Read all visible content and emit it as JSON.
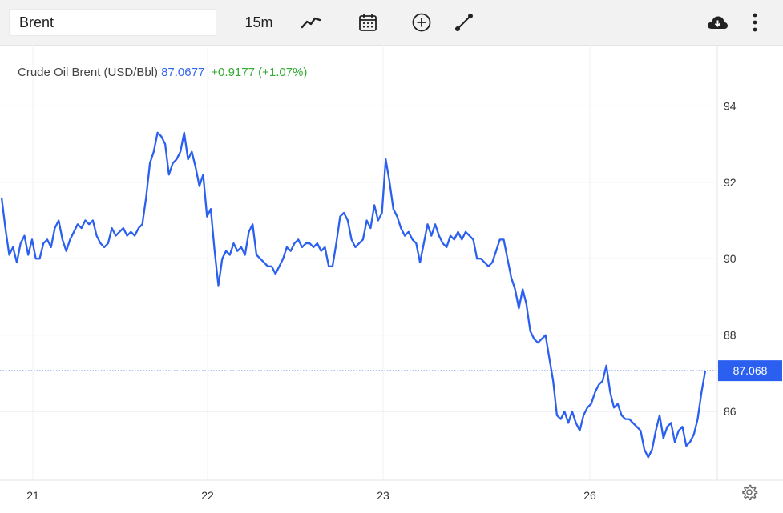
{
  "toolbar": {
    "search_value": "Brent",
    "interval": "15m",
    "icons": [
      "chart-type-icon",
      "calendar-icon",
      "add-indicator-icon",
      "draw-line-icon",
      "cloud-download-icon",
      "more-vertical-icon",
      "settings-gear-icon"
    ]
  },
  "legend": {
    "name": "Crude Oil Brent (USD/Bbl)",
    "price": "87.0677",
    "change": "+0.9177 (+1.07%)"
  },
  "colors": {
    "line": "#2a5ff0",
    "price_label_bg": "#2a5ff0",
    "change_up": "#33aa33"
  },
  "chart_data": {
    "type": "line",
    "title": "Crude Oil Brent (USD/Bbl)",
    "x_tick_labels": [
      "21",
      "22",
      "23",
      "26"
    ],
    "y_tick_labels": [
      "94",
      "92",
      "90",
      "88",
      "86"
    ],
    "y_ticks": [
      94,
      92,
      90,
      88,
      86
    ],
    "ylim": [
      84.2,
      95.6
    ],
    "grid": true,
    "last_price": 87.068,
    "last_price_label": "87.068",
    "series": [
      {
        "name": "Crude Oil Brent (USD/Bbl)",
        "values": [
          91.6,
          90.8,
          90.1,
          90.3,
          89.9,
          90.4,
          90.6,
          90.1,
          90.5,
          90.0,
          90.0,
          90.4,
          90.5,
          90.3,
          90.8,
          91.0,
          90.5,
          90.2,
          90.5,
          90.7,
          90.9,
          90.8,
          91.0,
          90.9,
          91.0,
          90.6,
          90.4,
          90.3,
          90.4,
          90.8,
          90.6,
          90.7,
          90.8,
          90.6,
          90.7,
          90.6,
          90.8,
          90.9,
          91.6,
          92.5,
          92.8,
          93.3,
          93.2,
          93.0,
          92.2,
          92.5,
          92.6,
          92.8,
          93.3,
          92.6,
          92.8,
          92.4,
          91.9,
          92.2,
          91.1,
          91.3,
          90.2,
          89.3,
          90.0,
          90.2,
          90.1,
          90.4,
          90.2,
          90.3,
          90.1,
          90.7,
          90.9,
          90.1,
          90.0,
          89.9,
          89.8,
          89.8,
          89.6,
          89.8,
          90.0,
          90.3,
          90.2,
          90.4,
          90.5,
          90.3,
          90.4,
          90.4,
          90.3,
          90.4,
          90.2,
          90.3,
          89.8,
          89.8,
          90.4,
          91.1,
          91.2,
          91.0,
          90.5,
          90.3,
          90.4,
          90.5,
          91.0,
          90.8,
          91.4,
          91.0,
          91.2,
          92.6,
          92.0,
          91.3,
          91.1,
          90.8,
          90.6,
          90.7,
          90.5,
          90.4,
          89.9,
          90.4,
          90.9,
          90.6,
          90.9,
          90.6,
          90.4,
          90.3,
          90.6,
          90.5,
          90.7,
          90.5,
          90.7,
          90.6,
          90.5,
          90.0,
          90.0,
          89.9,
          89.8,
          89.9,
          90.2,
          90.5,
          90.5,
          90.0,
          89.5,
          89.2,
          88.7,
          89.2,
          88.8,
          88.1,
          87.9,
          87.8,
          87.9,
          88.0,
          87.4,
          86.8,
          85.9,
          85.8,
          86.0,
          85.7,
          86.0,
          85.7,
          85.5,
          85.9,
          86.1,
          86.2,
          86.5,
          86.7,
          86.8,
          87.2,
          86.5,
          86.1,
          86.2,
          85.9,
          85.8,
          85.8,
          85.7,
          85.6,
          85.5,
          85.0,
          84.8,
          85.0,
          85.5,
          85.9,
          85.3,
          85.6,
          85.7,
          85.2,
          85.5,
          85.6,
          85.1,
          85.2,
          85.4,
          85.8,
          86.5,
          87.068
        ]
      }
    ]
  }
}
